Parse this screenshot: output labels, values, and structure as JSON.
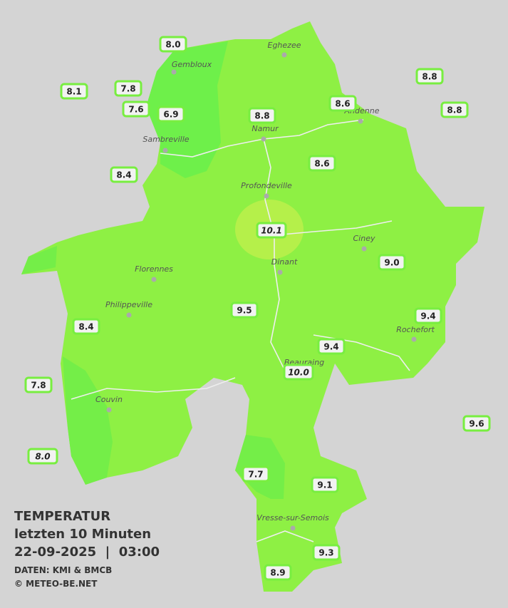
{
  "title": {
    "line1": "TEMPERATUR",
    "line2": "letzten 10 Minuten",
    "line3": "22-09-2025  |  03:00",
    "source": "DATEN: KMI & BMCB",
    "copyright": "© METEO-BE.NET"
  },
  "cities": [
    "Eghezee",
    "Gembloux",
    "Andenne",
    "Namur",
    "Sambreville",
    "Profondeville",
    "Ciney",
    "Dinant",
    "Florennes",
    "Philippeville",
    "Rochefort",
    "Beauraing",
    "Couvin",
    "Vresse-sur-Semois"
  ],
  "stations": [
    "8.0",
    "8.1",
    "7.8",
    "7.6",
    "6.9",
    "8.8",
    "8.6",
    "8.8",
    "8.8",
    "8.4",
    "8.6",
    "10.1",
    "9.0",
    "9.5",
    "9.4",
    "8.4",
    "9.4",
    "10.0",
    "7.8",
    "9.6",
    "8.0",
    "7.7",
    "9.1",
    "9.3",
    "8.9"
  ]
}
